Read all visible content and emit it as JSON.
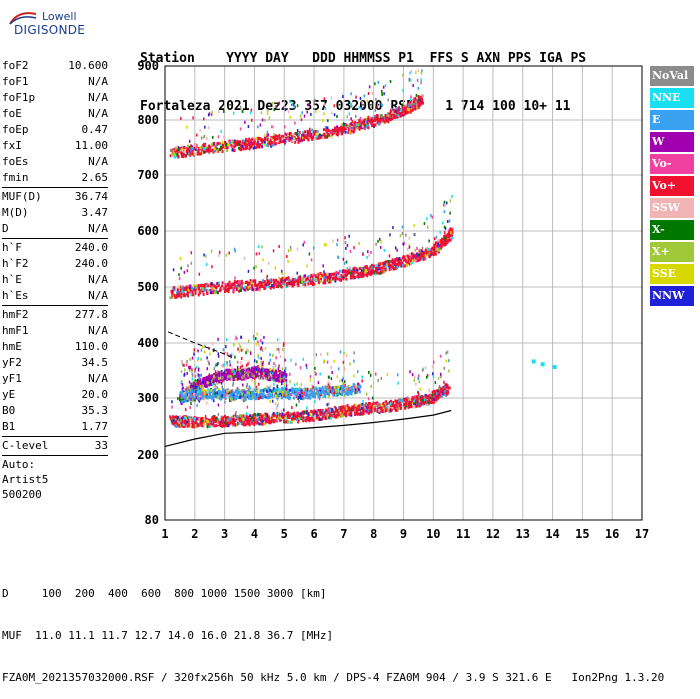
{
  "logo": {
    "line1": "Lowell",
    "line2": "DIGISONDE"
  },
  "header": {
    "labels": "Station    YYYY DAY   DDD HHMMSS P1  FFS S AXN PPS IGA PS",
    "values": "Fortaleza 2021 Dez23 357 032000 RSF    1 714 100 10+ 11"
  },
  "params": {
    "group1": [
      {
        "name": "foF2",
        "value": "10.600"
      },
      {
        "name": "foF1",
        "value": "N/A"
      },
      {
        "name": "foF1p",
        "value": "N/A"
      },
      {
        "name": "foE",
        "value": "N/A"
      },
      {
        "name": "foEp",
        "value": "0.47"
      },
      {
        "name": "fxI",
        "value": "11.00"
      },
      {
        "name": "foEs",
        "value": "N/A"
      },
      {
        "name": "fmin",
        "value": "2.65"
      }
    ],
    "group2": [
      {
        "name": "MUF(D)",
        "value": "36.74"
      },
      {
        "name": "M(D)",
        "value": "3.47"
      },
      {
        "name": "D",
        "value": "N/A"
      }
    ],
    "group3": [
      {
        "name": "h`F",
        "value": "240.0"
      },
      {
        "name": "h`F2",
        "value": "240.0"
      },
      {
        "name": "h`E",
        "value": "N/A"
      },
      {
        "name": "h`Es",
        "value": "N/A"
      }
    ],
    "group4": [
      {
        "name": "hmF2",
        "value": "277.8"
      },
      {
        "name": "hmF1",
        "value": "N/A"
      },
      {
        "name": "hmE",
        "value": "110.0"
      },
      {
        "name": "yF2",
        "value": "34.5"
      },
      {
        "name": "yF1",
        "value": "N/A"
      },
      {
        "name": "yE",
        "value": "20.0"
      },
      {
        "name": "B0",
        "value": "35.3"
      },
      {
        "name": "B1",
        "value": "1.77"
      }
    ],
    "clevel": {
      "name": "C-level",
      "value": "33"
    },
    "auto_label": "Auto:",
    "auto_software": "Artist5",
    "auto_version": "500200"
  },
  "legend": [
    {
      "label": "NoVal",
      "color": "#8c8c8c"
    },
    {
      "label": "NNE",
      "color": "#19e0f0"
    },
    {
      "label": "E",
      "color": "#3aa0f0"
    },
    {
      "label": "W",
      "color": "#a000b0"
    },
    {
      "label": "Vo-",
      "color": "#f040a0"
    },
    {
      "label": "Vo+",
      "color": "#f01030"
    },
    {
      "label": "SSW",
      "color": "#f0b4b4"
    },
    {
      "label": "X-",
      "color": "#007800"
    },
    {
      "label": "X+",
      "color": "#a0c838"
    },
    {
      "label": "SSE",
      "color": "#d8d800"
    },
    {
      "label": "NNW",
      "color": "#2020d8"
    }
  ],
  "footer": {
    "line1": "D     100  200  400  600  800 1000 1500 3000 [km]",
    "line2": "MUF  11.0 11.1 11.7 12.7 14.0 16.0 21.8 36.7 [MHz]",
    "line3": "FZA0M_2021357032000.RSF / 320fx256h 50 kHz 5.0 km / DPS-4 FZA0M 904 / 3.9 S 321.6 E   Ion2Png 1.3.20"
  },
  "chart_data": {
    "type": "scatter",
    "x_ticks": [
      "1",
      "2",
      "3",
      "4",
      "5",
      "6",
      "7",
      "8",
      "9",
      "10",
      "11",
      "12",
      "13",
      "14",
      "15",
      "16",
      "17"
    ],
    "y_ticks": [
      "80",
      "200",
      "300",
      "400",
      "500",
      "600",
      "700",
      "800",
      "900"
    ],
    "xlim": [
      1,
      17
    ],
    "ylim": [
      80,
      900
    ],
    "grid": true,
    "series": [
      {
        "name": "Vo+",
        "color": "#f01030",
        "x": [
          1.2,
          2.0,
          3.0,
          4.0,
          5.0,
          6.0,
          7.0,
          8.0,
          9.0,
          9.8,
          10.5
        ],
        "y": [
          262,
          260,
          262,
          265,
          268,
          272,
          280,
          285,
          292,
          300,
          320
        ]
      },
      {
        "name": "W",
        "color": "#a000b0",
        "x": [
          1.5,
          2.0,
          2.5,
          3.0,
          3.5,
          4.0,
          4.5,
          5.0
        ],
        "y": [
          300,
          325,
          335,
          345,
          345,
          350,
          345,
          340
        ]
      },
      {
        "name": "E",
        "color": "#3aa0f0",
        "x": [
          1.5,
          2.5,
          3.5,
          4.5,
          5.5,
          6.5,
          7.5
        ],
        "y": [
          305,
          310,
          308,
          312,
          310,
          315,
          320
        ]
      },
      {
        "name": "Vo+",
        "color": "#f01030",
        "x": [
          1.2,
          2.5,
          4.0,
          5.5,
          7.0,
          8.0,
          9.0,
          10.0,
          10.6
        ],
        "y": [
          492,
          500,
          506,
          512,
          524,
          534,
          548,
          568,
          600
        ]
      },
      {
        "name": "Vo+",
        "color": "#f01030",
        "x": [
          1.2,
          2.5,
          4.0,
          5.5,
          7.0,
          8.0,
          9.0,
          9.6
        ],
        "y": [
          742,
          752,
          760,
          772,
          786,
          800,
          820,
          840
        ]
      }
    ],
    "virtual_height_curve": {
      "x": [
        1.0,
        2.0,
        3.0,
        4.0,
        5.0,
        6.0,
        7.0,
        8.0,
        9.0,
        10.0,
        10.6
      ],
      "y": [
        215,
        228,
        238,
        240,
        244,
        248,
        252,
        257,
        263,
        270,
        278
      ]
    },
    "profile_curve": {
      "x": [
        1.1,
        2.0,
        2.5,
        3.0,
        3.2
      ],
      "y": [
        420,
        400,
        390,
        380,
        375
      ]
    },
    "extra_points": {
      "x": [
        13.3,
        13.6,
        14.0
      ],
      "y": [
        370,
        365,
        360
      ]
    }
  }
}
